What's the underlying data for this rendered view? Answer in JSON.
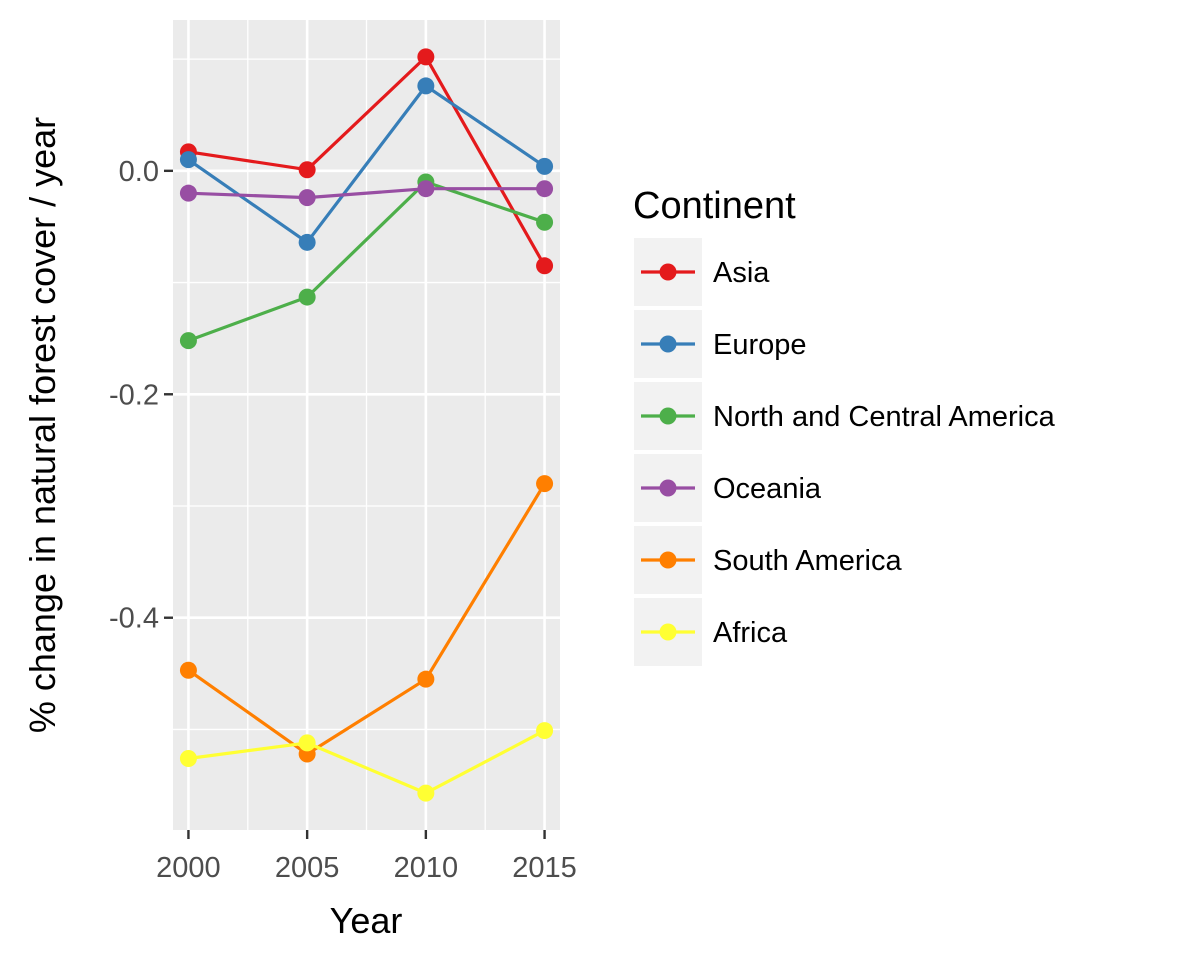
{
  "chart_data": {
    "type": "line",
    "xlabel": "Year",
    "ylabel": "% change in natural forest cover / year",
    "x": [
      2000,
      2005,
      2010,
      2015
    ],
    "x_ticks": [
      "2000",
      "2005",
      "2010",
      "2015"
    ],
    "xlim": [
      1999.35,
      2015.65
    ],
    "y_ticks": [
      {
        "value": 0.0,
        "label": "0.0"
      },
      {
        "value": -0.2,
        "label": "-0.2"
      },
      {
        "value": -0.4,
        "label": "-0.4"
      }
    ],
    "y_minor_ticks": [
      0.1,
      -0.1,
      -0.3,
      -0.5
    ],
    "ylim": [
      -0.59,
      0.135
    ],
    "grid": true,
    "legend": {
      "title": "Continent",
      "placement": "right"
    },
    "series": [
      {
        "name": "Asia",
        "color": "#e41a1c",
        "values": [
          0.017,
          0.001,
          0.102,
          -0.085
        ]
      },
      {
        "name": "Europe",
        "color": "#377eb8",
        "values": [
          0.01,
          -0.064,
          0.076,
          0.004
        ]
      },
      {
        "name": "North and Central America",
        "color": "#4daf4a",
        "values": [
          -0.152,
          -0.113,
          -0.01,
          -0.046
        ]
      },
      {
        "name": "Oceania",
        "color": "#984ea3",
        "values": [
          -0.02,
          -0.024,
          -0.016,
          -0.016
        ]
      },
      {
        "name": "South America",
        "color": "#ff7f00",
        "values": [
          -0.447,
          -0.522,
          -0.455,
          -0.28
        ]
      },
      {
        "name": "Africa",
        "color": "#ffff33",
        "values": [
          -0.526,
          -0.512,
          -0.557,
          -0.501
        ]
      }
    ]
  }
}
